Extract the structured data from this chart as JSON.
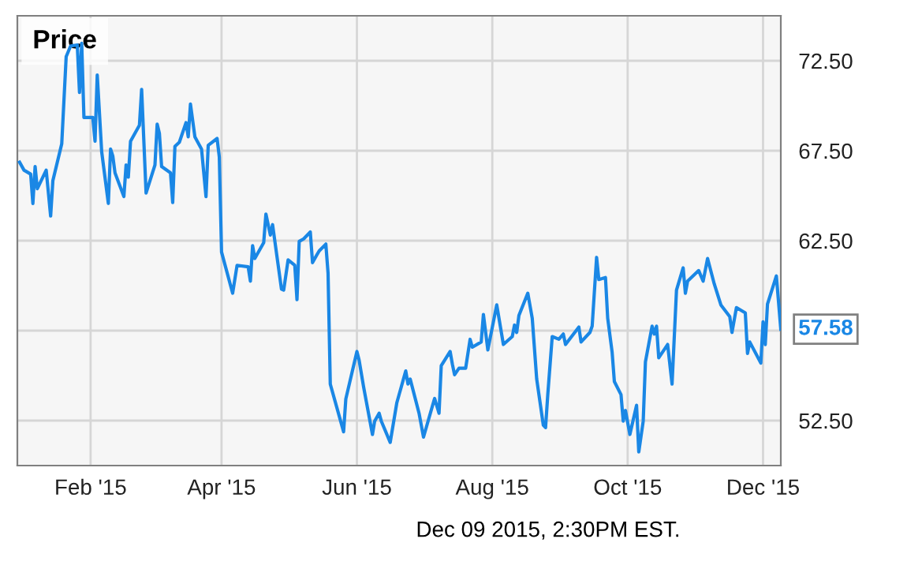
{
  "chart_data": {
    "type": "line",
    "title": "Price",
    "x": [
      "2014-12-31",
      "2015-01-02",
      "2015-01-05",
      "2015-01-06",
      "2015-01-07",
      "2015-01-08",
      "2015-01-12",
      "2015-01-14",
      "2015-01-15",
      "2015-01-19",
      "2015-01-21",
      "2015-01-23",
      "2015-01-26",
      "2015-01-27",
      "2015-01-28",
      "2015-01-29",
      "2015-02-02",
      "2015-02-03",
      "2015-02-04",
      "2015-02-06",
      "2015-02-09",
      "2015-02-10",
      "2015-02-11",
      "2015-02-12",
      "2015-02-16",
      "2015-02-17",
      "2015-02-18",
      "2015-02-19",
      "2015-02-23",
      "2015-02-24",
      "2015-02-26",
      "2015-03-02",
      "2015-03-03",
      "2015-03-04",
      "2015-03-05",
      "2015-03-09",
      "2015-03-10",
      "2015-03-11",
      "2015-03-13",
      "2015-03-16",
      "2015-03-17",
      "2015-03-18",
      "2015-03-20",
      "2015-03-23",
      "2015-03-25",
      "2015-03-26",
      "2015-03-30",
      "2015-03-31",
      "2015-04-01",
      "2015-04-06",
      "2015-04-08",
      "2015-04-13",
      "2015-04-14",
      "2015-04-15",
      "2015-04-16",
      "2015-04-20",
      "2015-04-21",
      "2015-04-23",
      "2015-04-24",
      "2015-04-28",
      "2015-04-29",
      "2015-05-01",
      "2015-05-04",
      "2015-05-05",
      "2015-05-06",
      "2015-05-08",
      "2015-05-11",
      "2015-05-12",
      "2015-05-14",
      "2015-05-15",
      "2015-05-18",
      "2015-05-19",
      "2015-05-20",
      "2015-05-26",
      "2015-05-27",
      "2015-06-01",
      "2015-06-02",
      "2015-06-04",
      "2015-06-08",
      "2015-06-09",
      "2015-06-11",
      "2015-06-12",
      "2015-06-16",
      "2015-06-19",
      "2015-06-23",
      "2015-06-24",
      "2015-06-25",
      "2015-06-29",
      "2015-07-01",
      "2015-07-06",
      "2015-07-08",
      "2015-07-09",
      "2015-07-13",
      "2015-07-14",
      "2015-07-15",
      "2015-07-17",
      "2015-07-20",
      "2015-07-22",
      "2015-07-23",
      "2015-07-27",
      "2015-07-28",
      "2015-07-30",
      "2015-08-03",
      "2015-08-06",
      "2015-08-10",
      "2015-08-11",
      "2015-08-12",
      "2015-08-13",
      "2015-08-17",
      "2015-08-19",
      "2015-08-21",
      "2015-08-24",
      "2015-08-25",
      "2015-08-26",
      "2015-08-28",
      "2015-08-31",
      "2015-09-02",
      "2015-09-03",
      "2015-09-09",
      "2015-09-10",
      "2015-09-14",
      "2015-09-15",
      "2015-09-17",
      "2015-09-18",
      "2015-09-21",
      "2015-09-22",
      "2015-09-24",
      "2015-09-25",
      "2015-09-28",
      "2015-09-29",
      "2015-09-30",
      "2015-10-02",
      "2015-10-05",
      "2015-10-06",
      "2015-10-08",
      "2015-10-09",
      "2015-10-12",
      "2015-10-13",
      "2015-10-14",
      "2015-10-15",
      "2015-10-19",
      "2015-10-21",
      "2015-10-23",
      "2015-10-26",
      "2015-10-27",
      "2015-10-28",
      "2015-11-02",
      "2015-11-04",
      "2015-11-06",
      "2015-11-09",
      "2015-11-12",
      "2015-11-16",
      "2015-11-17",
      "2015-11-19",
      "2015-11-23",
      "2015-11-24",
      "2015-11-25",
      "2015-11-30",
      "2015-12-01",
      "2015-12-02",
      "2015-12-03",
      "2015-12-07",
      "2015-12-09"
    ],
    "series": [
      {
        "color": "#1a87e5",
        "values": [
          66.86,
          66.42,
          66.2,
          64.57,
          66.62,
          65.39,
          66.42,
          63.87,
          65.83,
          67.88,
          72.73,
          73.32,
          73.38,
          70.74,
          73.47,
          69.35,
          69.35,
          68.03,
          71.71,
          67.44,
          64.57,
          67.59,
          67.21,
          66.27,
          64.95,
          66.71,
          66.03,
          68.03,
          68.91,
          70.91,
          65.15,
          66.71,
          68.98,
          68.47,
          66.62,
          66.27,
          64.62,
          67.74,
          67.97,
          69.06,
          68.27,
          70.09,
          68.27,
          67.59,
          64.95,
          67.8,
          68.18,
          67.15,
          61.87,
          59.58,
          61.13,
          61.05,
          60.25,
          62.22,
          61.51,
          62.39,
          63.98,
          62.81,
          63.39,
          59.81,
          59.75,
          61.43,
          61.13,
          59.22,
          62.46,
          62.6,
          62.98,
          61.28,
          61.72,
          61.93,
          62.31,
          60.69,
          54.53,
          51.88,
          53.7,
          56.34,
          55.85,
          54.38,
          51.73,
          52.47,
          52.91,
          52.47,
          51.29,
          53.5,
          55.26,
          54.53,
          54.81,
          52.91,
          51.58,
          53.73,
          52.91,
          55.55,
          56.34,
          55.64,
          55.05,
          55.41,
          55.41,
          57.02,
          56.58,
          56.87,
          58.4,
          56.43,
          58.93,
          56.73,
          57.17,
          57.81,
          57.4,
          58.34,
          59.58,
          58.19,
          54.82,
          52.24,
          52.11,
          53.94,
          57.17,
          57.02,
          57.31,
          56.73,
          57.7,
          56.87,
          57.4,
          57.75,
          61.57,
          60.34,
          60.45,
          58.19,
          56.29,
          54.67,
          53.94,
          52.47,
          53.06,
          51.73,
          53.35,
          50.76,
          52.47,
          55.76,
          57.75,
          57.31,
          57.75,
          55.99,
          56.73,
          54.53,
          59.75,
          60.99,
          59.58,
          60.25,
          60.84,
          60.25,
          61.51,
          60.1,
          58.93,
          58.28,
          57.4,
          58.78,
          58.49,
          56.23,
          56.87,
          55.7,
          57.99,
          56.73,
          58.98,
          60.54,
          57.58
        ]
      }
    ],
    "xlim": [
      "2014-12-30",
      "2015-12-09"
    ],
    "xticks": [
      {
        "value": "2015-02-01",
        "label": "Feb '15"
      },
      {
        "value": "2015-04-01",
        "label": "Apr '15"
      },
      {
        "value": "2015-06-01",
        "label": "Jun '15"
      },
      {
        "value": "2015-08-01",
        "label": "Aug '15"
      },
      {
        "value": "2015-10-01",
        "label": "Oct '15"
      },
      {
        "value": "2015-12-01",
        "label": "Dec '15"
      }
    ],
    "ylim": [
      50,
      75
    ],
    "yticks": [
      {
        "value": 52.5,
        "label": "52.50"
      },
      {
        "value": 57.5,
        "label": null
      },
      {
        "value": 62.5,
        "label": "62.50"
      },
      {
        "value": 67.5,
        "label": "67.50"
      },
      {
        "value": 72.5,
        "label": "72.50"
      }
    ],
    "grid": true,
    "legend": false,
    "marker": "none",
    "line_style": "solid",
    "annotations": [
      {
        "text": "57.58",
        "x": "2015-12-09",
        "y": 57.58
      },
      "Dec 09 2015, 2:30PM EST."
    ]
  }
}
